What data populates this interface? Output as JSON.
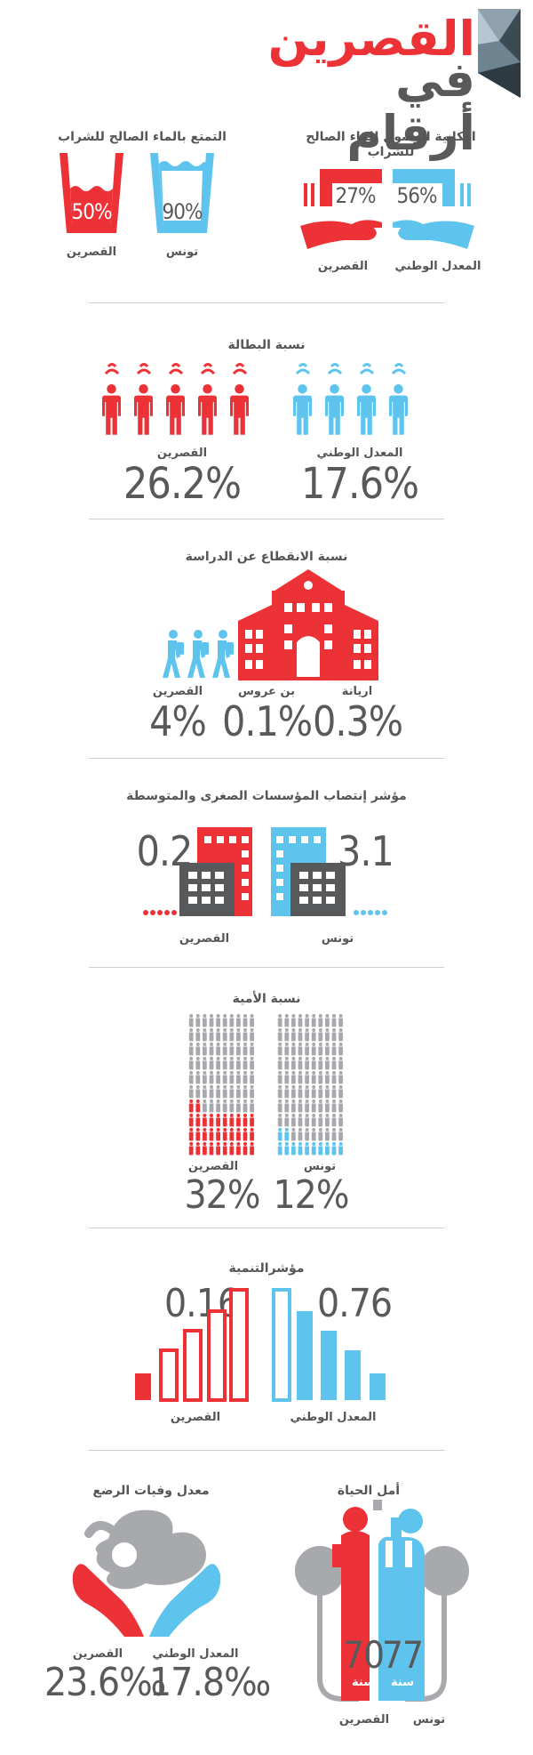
{
  "colors": {
    "red": "#ec3237",
    "blue": "#5ec4ee",
    "gray": "#58595b",
    "lightgray": "#a7a9ac"
  },
  "header": {
    "line1": "القصرين",
    "line2": "في أرقام"
  },
  "water": {
    "enjoy_title": "التمتع بالماء الصالح للشراب",
    "enjoy_kasserine_value": "50%",
    "enjoy_tunis_value": "90%",
    "enjoy_kasserine_label": "القصرين",
    "enjoy_tunis_label": "تونس",
    "access_title": "امكانية الوصول للماء الصالح للشراب",
    "access_kasserine_value": "27%",
    "access_national_value": "56%",
    "access_kasserine_label": "القصرين",
    "access_national_label": "المعدل الوطني"
  },
  "unemployment": {
    "title": "نسبة البطالة",
    "kasserine_label": "القصرين",
    "kasserine_value": "26.2%",
    "national_label": "المعدل الوطني",
    "national_value": "17.6%"
  },
  "dropout": {
    "title": "نسبة الانقطاع عن الدراسة",
    "items": [
      {
        "label": "القصرين",
        "value": "4%"
      },
      {
        "label": "بن عروس",
        "value": "0.1%"
      },
      {
        "label": "اريانة",
        "value": "0.3%"
      }
    ]
  },
  "enterprises": {
    "title": "مؤشر إنتصاب المؤسسات الصغرى والمتوسطة",
    "kasserine_value": "0.2",
    "kasserine_label": "القصرين",
    "tunis_value": "3.1",
    "tunis_label": "تونس"
  },
  "illiteracy": {
    "title": "نسبة الأمية",
    "kasserine_label": "القصرين",
    "kasserine_value": "32%",
    "kasserine_fraction": 0.32,
    "tunis_label": "تونس",
    "tunis_value": "12%",
    "tunis_fraction": 0.12
  },
  "development": {
    "title": "مؤشرالتنمية",
    "kasserine_value": "0.16",
    "kasserine_label": "القصرين",
    "national_value": "0.76",
    "national_label": "المعدل الوطني"
  },
  "infant": {
    "title": "معدل وفيات الرضع",
    "kasserine_label": "القصرين",
    "kasserine_value": "23.6‰",
    "national_label": "المعدل الوطني",
    "national_value": "17.8‰"
  },
  "life": {
    "title": "أمل الحياة",
    "kasserine_value": "70",
    "tunis_value": "77",
    "unit": "سنة",
    "kasserine_label": "القصرين",
    "tunis_label": "تونس"
  }
}
